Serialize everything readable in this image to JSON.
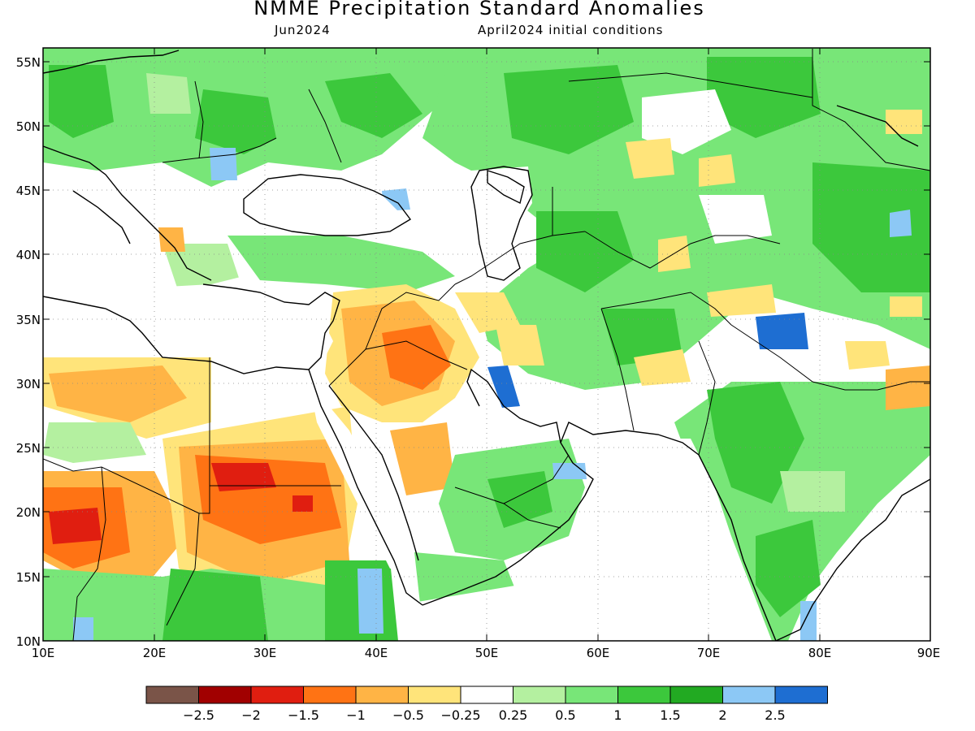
{
  "title": "NMME Precipitation Standard Anomalies",
  "subtitle_left": "Jun2024",
  "subtitle_right": "April2024 initial conditions",
  "lat_labels": [
    "55N",
    "50N",
    "45N",
    "40N",
    "35N",
    "30N",
    "25N",
    "20N",
    "15N",
    "10N"
  ],
  "lon_labels": [
    "10E",
    "20E",
    "30E",
    "40E",
    "50E",
    "60E",
    "70E",
    "80E",
    "90E"
  ],
  "colorbar": {
    "colors": [
      "#7a5448",
      "#a10000",
      "#e01e10",
      "#ff7314",
      "#ffb445",
      "#ffe47a",
      "#ffffff",
      "#b4f0a0",
      "#78e678",
      "#3cc83c",
      "#22aa22",
      "#8cc8f5",
      "#1e6ed2"
    ],
    "labels": [
      "-2.5",
      "-2",
      "-1.5",
      "-1",
      "-0.5",
      "-0.25",
      "0.25",
      "0.5",
      "1",
      "1.5",
      "2",
      "2.5"
    ]
  },
  "colors": {
    "light_green": "#b4f0a0",
    "green": "#78e678",
    "mid_green": "#3cc83c",
    "dark_green": "#22aa22",
    "light_blue": "#8cc8f5",
    "blue": "#1e6ed2",
    "yellow": "#ffe47a",
    "light_orange": "#ffb445",
    "orange": "#ff7314",
    "red": "#e01e10"
  }
}
